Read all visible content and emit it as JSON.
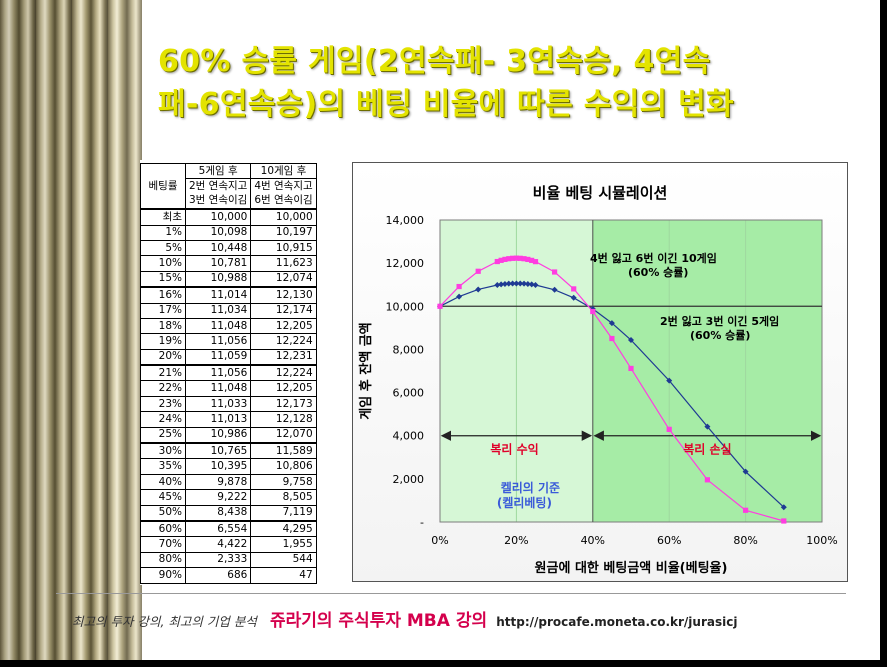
{
  "title": {
    "line1": "60% 승률 게임(2연속패- 3연속승, 4연속",
    "line2": "패-6연속승)의 베팅 비율에 따른 수익의 변화"
  },
  "table": {
    "header_row1": [
      "",
      "5게임 후",
      "10게임 후"
    ],
    "header_row2": [
      "베팅률",
      "2번 연속지고",
      "4번 연속지고"
    ],
    "header_row3": [
      "",
      "3번 연속이김",
      "6번 연속이김"
    ],
    "rows": [
      {
        "rate": "최초",
        "g5": "10,000",
        "g10": "10,000"
      },
      {
        "rate": "1%",
        "g5": "10,098",
        "g10": "10,197"
      },
      {
        "rate": "5%",
        "g5": "10,448",
        "g10": "10,915"
      },
      {
        "rate": "10%",
        "g5": "10,781",
        "g10": "11,623"
      },
      {
        "rate": "15%",
        "g5": "10,988",
        "g10": "12,074"
      },
      {
        "rate": "16%",
        "g5": "11,014",
        "g10": "12,130"
      },
      {
        "rate": "17%",
        "g5": "11,034",
        "g10": "12,174"
      },
      {
        "rate": "18%",
        "g5": "11,048",
        "g10": "12,205"
      },
      {
        "rate": "19%",
        "g5": "11,056",
        "g10": "12,224"
      },
      {
        "rate": "20%",
        "g5": "11,059",
        "g10": "12,231"
      },
      {
        "rate": "21%",
        "g5": "11,056",
        "g10": "12,224"
      },
      {
        "rate": "22%",
        "g5": "11,048",
        "g10": "12,205"
      },
      {
        "rate": "23%",
        "g5": "11,033",
        "g10": "12,173"
      },
      {
        "rate": "24%",
        "g5": "11,013",
        "g10": "12,128"
      },
      {
        "rate": "25%",
        "g5": "10,986",
        "g10": "12,070"
      },
      {
        "rate": "30%",
        "g5": "10,765",
        "g10": "11,589"
      },
      {
        "rate": "35%",
        "g5": "10,395",
        "g10": "10,806"
      },
      {
        "rate": "40%",
        "g5": "9,878",
        "g10": "9,758"
      },
      {
        "rate": "45%",
        "g5": "9,222",
        "g10": "8,505"
      },
      {
        "rate": "50%",
        "g5": "8,438",
        "g10": "7,119"
      },
      {
        "rate": "60%",
        "g5": "6,554",
        "g10": "4,295"
      },
      {
        "rate": "70%",
        "g5": "4,422",
        "g10": "1,955"
      },
      {
        "rate": "80%",
        "g5": "2,333",
        "g10": "544"
      },
      {
        "rate": "90%",
        "g5": "686",
        "g10": "47"
      }
    ],
    "group_breaks": [
      5,
      10,
      15,
      20
    ]
  },
  "chart_data": {
    "type": "line",
    "title": "비율 베팅 시뮬레이션",
    "xlabel": "원금에 대한 베팅금액 비율(베팅율)",
    "ylabel": "게임 후 잔액 금액",
    "xlim": [
      0,
      1
    ],
    "ylim": [
      0,
      14000
    ],
    "x_ticks": [
      "0%",
      "20%",
      "40%",
      "60%",
      "80%",
      "100%"
    ],
    "y_ticks": [
      "-",
      "2,000",
      "4,000",
      "6,000",
      "8,000",
      "10,000",
      "12,000",
      "14,000"
    ],
    "x": [
      0,
      0.05,
      0.1,
      0.15,
      0.16,
      0.17,
      0.18,
      0.19,
      0.2,
      0.21,
      0.22,
      0.23,
      0.24,
      0.25,
      0.3,
      0.35,
      0.4,
      0.45,
      0.5,
      0.6,
      0.7,
      0.8,
      0.9
    ],
    "series": [
      {
        "key": "g5",
        "color": "#1f3a93",
        "marker": "diamond",
        "values": [
          10000,
          10448,
          10781,
          10988,
          11014,
          11034,
          11048,
          11056,
          11059,
          11056,
          11048,
          11033,
          11013,
          10986,
          10765,
          10395,
          9878,
          9222,
          8438,
          6554,
          4422,
          2333,
          686
        ]
      },
      {
        "key": "g10",
        "color": "#ff3de0",
        "marker": "square",
        "values": [
          10000,
          10915,
          11623,
          12074,
          12130,
          12174,
          12205,
          12224,
          12231,
          12224,
          12205,
          12173,
          12128,
          12070,
          11589,
          10806,
          9758,
          8505,
          7119,
          4295,
          1955,
          544,
          47
        ]
      }
    ],
    "reference_line": 10000,
    "arrow_level": 4000,
    "shaded_regions": [
      {
        "from": 0,
        "to": 0.4,
        "color": "#d6f7d6"
      },
      {
        "from": 0.4,
        "to": 1.0,
        "color": "#a6eca6"
      }
    ],
    "annotations": {
      "g10_label_1": "4번 잃고 6번 이긴 10게임",
      "g10_label_2": "(60% 승률)",
      "g5_label_1": "2번 잃고 3번 이긴 5게임",
      "g5_label_2": "(60% 승률)",
      "gain": "복리 수익",
      "loss": "복리 손실",
      "kelly_1": "켈리의 기준",
      "kelly_2": "(켈리베팅)"
    },
    "colors": {
      "gain_text": "#e0002a",
      "kelly_text": "#3a5bd9"
    }
  },
  "footer": {
    "tagline": "최고의 투자 강의, 최고의 기업 분석",
    "brand": "쥬라기의 주식투자 MBA 강의",
    "url": "http://procafe.moneta.co.kr/jurasicj"
  }
}
